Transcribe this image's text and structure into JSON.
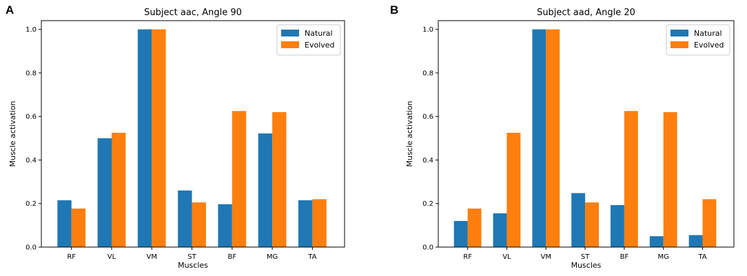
{
  "figure": {
    "panels": [
      "A",
      "B"
    ]
  },
  "chart_data": [
    {
      "panel": "A",
      "type": "bar",
      "title": "Subject aac, Angle 90",
      "xlabel": "Muscles",
      "ylabel": "Muscle activation",
      "categories": [
        "RF",
        "VL",
        "VM",
        "ST",
        "BF",
        "MG",
        "TA"
      ],
      "ylim": [
        0,
        1.04
      ],
      "yticks": [
        "0.0",
        "0.2",
        "0.4",
        "0.6",
        "0.8",
        "1.0"
      ],
      "legend_position": "top-right",
      "series": [
        {
          "name": "Natural",
          "color": "#1f77b4",
          "values": [
            0.215,
            0.5,
            1.0,
            0.26,
            0.197,
            0.522,
            0.215
          ]
        },
        {
          "name": "Evolved",
          "color": "#ff7f0e",
          "values": [
            0.177,
            0.525,
            1.0,
            0.205,
            0.625,
            0.62,
            0.22
          ]
        }
      ]
    },
    {
      "panel": "B",
      "type": "bar",
      "title": "Subject aad, Angle 20",
      "xlabel": "Muscles",
      "ylabel": "Muscle activation",
      "categories": [
        "RF",
        "VL",
        "VM",
        "ST",
        "BF",
        "MG",
        "TA"
      ],
      "ylim": [
        0,
        1.04
      ],
      "yticks": [
        "0.0",
        "0.2",
        "0.4",
        "0.6",
        "0.8",
        "1.0"
      ],
      "legend_position": "top-right",
      "series": [
        {
          "name": "Natural",
          "color": "#1f77b4",
          "values": [
            0.12,
            0.155,
            1.0,
            0.248,
            0.193,
            0.05,
            0.055
          ]
        },
        {
          "name": "Evolved",
          "color": "#ff7f0e",
          "values": [
            0.177,
            0.525,
            1.0,
            0.205,
            0.625,
            0.62,
            0.22
          ]
        }
      ]
    }
  ]
}
